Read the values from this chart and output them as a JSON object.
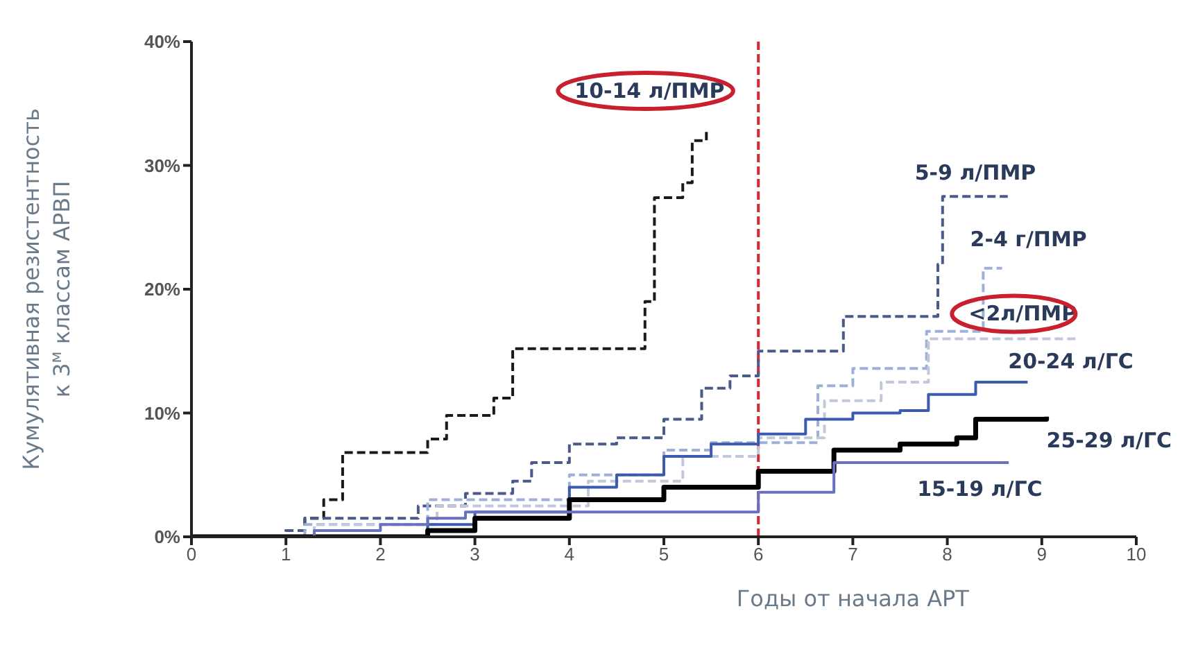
{
  "chart_data": {
    "type": "step",
    "xlabel": "Годы от начала АРТ",
    "ylabel": "Кумулятивная резистентность\nк 3$^{м}$ классам АРВП",
    "xlim": [
      0,
      10
    ],
    "xticks": [
      0,
      1,
      2,
      3,
      4,
      5,
      6,
      7,
      8,
      9,
      10
    ],
    "ylim": [
      0,
      40
    ],
    "yticks": [
      {
        "value": 0,
        "label": "0%"
      },
      {
        "value": 10,
        "label": "10%"
      },
      {
        "value": 20,
        "label": "20%"
      },
      {
        "value": 30,
        "label": "30%"
      },
      {
        "value": 40,
        "label": "40%"
      }
    ],
    "grid": false,
    "legend": false,
    "ref_lines": [
      {
        "axis": "x",
        "value": 6,
        "color": "#d8283a",
        "line_style": "dashed"
      }
    ],
    "series": [
      {
        "name": "10-14 л/ПМР",
        "color": "#1a1a1a",
        "line_style": "dashed",
        "x": [
          0,
          1.0,
          1.2,
          1.4,
          1.6,
          2.5,
          2.7,
          3.2,
          3.4,
          4.8,
          4.9,
          5.2,
          5.3,
          5.45
        ],
        "values": [
          0,
          0.5,
          1.5,
          3,
          6.8,
          7.9,
          9.8,
          11.2,
          15.2,
          19,
          27.4,
          28.6,
          32,
          33
        ]
      },
      {
        "name": "5-9 л/ПМР",
        "color": "#4a5a8a",
        "line_style": "dashed",
        "x": [
          0,
          1.0,
          1.2,
          2.4,
          2.9,
          3.4,
          3.6,
          4.0,
          4.5,
          5.0,
          5.4,
          5.7,
          6.0,
          6.9,
          7.9,
          7.95,
          8.64
        ],
        "values": [
          0,
          0.5,
          1.5,
          2.5,
          3.5,
          4.5,
          6,
          7.5,
          8,
          9.5,
          12,
          13,
          15,
          17.8,
          22,
          27.5,
          27.5
        ]
      },
      {
        "name": "2-4 г/ПМР",
        "color": "#9fb0d8",
        "line_style": "dashed",
        "x": [
          0,
          1.2,
          2.5,
          4.0,
          5.0,
          5.5,
          6.63,
          7.0,
          7.78,
          8.38,
          8.58
        ],
        "values": [
          0,
          1,
          3,
          5,
          7,
          7.6,
          12.2,
          13.6,
          16.6,
          21.7,
          21.7
        ]
      },
      {
        "name": "<2л/ПМР",
        "color": "#c0c8da",
        "line_style": "dashed",
        "x": [
          0,
          1.3,
          2.6,
          4.2,
          5.2,
          6.0,
          6.7,
          7.3,
          7.8,
          9.4
        ],
        "values": [
          0,
          1,
          2.5,
          4.5,
          6.5,
          8,
          11,
          12.5,
          16,
          16
        ]
      },
      {
        "name": "20-24 л/ГС",
        "color": "#3a5bb0",
        "line_style": "solid",
        "x": [
          0,
          1.8,
          2.5,
          3.0,
          4.0,
          4.5,
          5.0,
          5.5,
          6.0,
          6.5,
          7.0,
          7.5,
          7.8,
          8.3,
          8.85
        ],
        "values": [
          0,
          0,
          1,
          2,
          4,
          5,
          6.5,
          7.5,
          8.3,
          9.5,
          10,
          10.2,
          11.5,
          12.5,
          12.5
        ]
      },
      {
        "name": "25-29 л/ГС",
        "color": "#000000",
        "line_style": "solid",
        "x": [
          0,
          1.8,
          2.5,
          3.0,
          4.0,
          5.0,
          6.0,
          6.8,
          7.5,
          8.1,
          8.3,
          9.05
        ],
        "values": [
          0,
          0,
          0.5,
          1.5,
          3,
          4,
          5.3,
          7,
          7.5,
          8,
          9.5,
          9.7
        ]
      },
      {
        "name": "15-19 л/ГС",
        "color": "#6a70c0",
        "line_style": "solid",
        "x": [
          0,
          1.3,
          2.0,
          2.5,
          2.9,
          6.0,
          6.8,
          8.65
        ],
        "values": [
          0,
          0.5,
          1,
          1.5,
          2,
          3.6,
          6,
          6
        ]
      }
    ]
  }
}
